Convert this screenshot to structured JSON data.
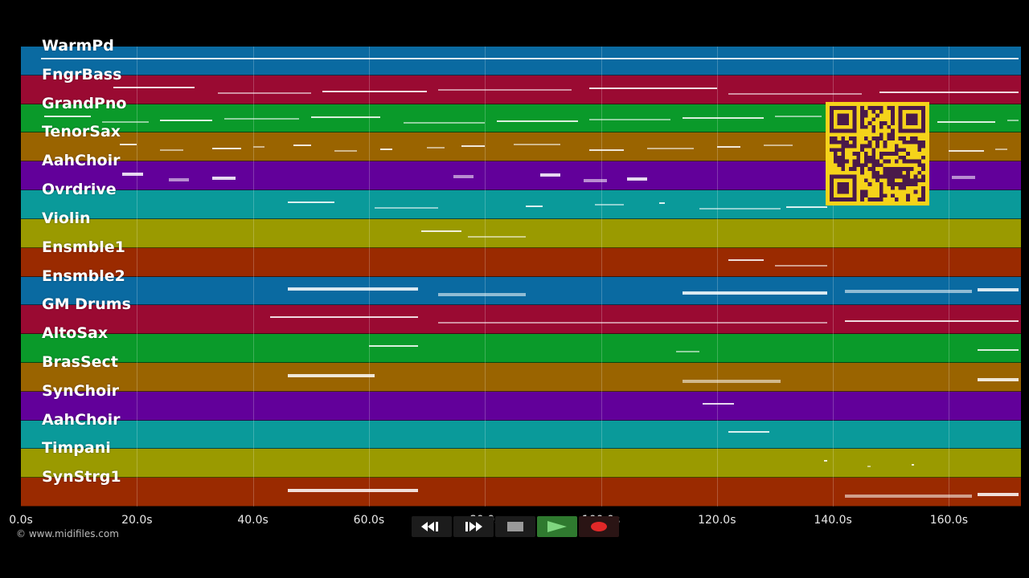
{
  "tracks": [
    {
      "name": "WarmPd",
      "color": "#0a6aa1"
    },
    {
      "name": "FngrBass",
      "color": "#9a0a32"
    },
    {
      "name": "GrandPno",
      "color": "#0a9a2a"
    },
    {
      "name": "TenorSax",
      "color": "#9a6400"
    },
    {
      "name": "AahChoir",
      "color": "#62009a"
    },
    {
      "name": "Ovrdrive",
      "color": "#0a9a9a"
    },
    {
      "name": "Violin",
      "color": "#9a9a00"
    },
    {
      "name": "Ensmble1",
      "color": "#9a2a00"
    },
    {
      "name": "Ensmble2",
      "color": "#0a6aa1"
    },
    {
      "name": "GM Drums",
      "color": "#9a0a32"
    },
    {
      "name": "AltoSax",
      "color": "#0a9a2a"
    },
    {
      "name": "BrasSect",
      "color": "#9a6400"
    },
    {
      "name": "SynChoir",
      "color": "#62009a"
    },
    {
      "name": "AahChoir",
      "color": "#0a9a9a"
    },
    {
      "name": "Timpani",
      "color": "#9a9a00"
    },
    {
      "name": "SynStrg1",
      "color": "#9a2a00"
    }
  ],
  "timeline": {
    "max_seconds": 172,
    "ticks": [
      "0.0s",
      "20.0s",
      "40.0s",
      "60.0s",
      "80.0s",
      "100.0s",
      "120.0s",
      "140.0s",
      "160.0s"
    ],
    "tick_values": [
      0,
      20,
      40,
      60,
      80,
      100,
      120,
      140,
      160
    ]
  },
  "notes": [
    {
      "track": 0,
      "segments": [
        [
          3.5,
          172
        ]
      ]
    },
    {
      "track": 1,
      "segments": [
        [
          16,
          30
        ],
        [
          34,
          50
        ],
        [
          52,
          70
        ],
        [
          72,
          95
        ],
        [
          98,
          120
        ],
        [
          122,
          145
        ],
        [
          148,
          172
        ]
      ]
    },
    {
      "track": 2,
      "segments": [
        [
          4,
          12
        ],
        [
          14,
          22
        ],
        [
          24,
          33
        ],
        [
          35,
          48
        ],
        [
          50,
          62
        ],
        [
          66,
          80
        ],
        [
          82,
          96
        ],
        [
          98,
          112
        ],
        [
          114,
          128
        ],
        [
          130,
          138
        ],
        [
          158,
          168
        ],
        [
          170,
          172
        ]
      ]
    },
    {
      "track": 3,
      "segments": [
        [
          17,
          20
        ],
        [
          24,
          28
        ],
        [
          33,
          38
        ],
        [
          40,
          42
        ],
        [
          47,
          50
        ],
        [
          54,
          58
        ],
        [
          62,
          64
        ],
        [
          70,
          73
        ],
        [
          76,
          80
        ],
        [
          85,
          93
        ],
        [
          98,
          104
        ],
        [
          108,
          116
        ],
        [
          120,
          124
        ],
        [
          128,
          133
        ],
        [
          160,
          166
        ],
        [
          168,
          170
        ]
      ]
    },
    {
      "track": 4,
      "segments": [
        [
          17.5,
          21
        ],
        [
          25.5,
          29
        ],
        [
          33,
          37
        ],
        [
          74.5,
          78
        ],
        [
          89.5,
          93
        ],
        [
          97,
          101
        ],
        [
          104.5,
          108
        ],
        [
          160.5,
          164.5
        ]
      ]
    },
    {
      "track": 5,
      "segments": [
        [
          46,
          54
        ],
        [
          61,
          72
        ],
        [
          87,
          90
        ],
        [
          99,
          104
        ],
        [
          110,
          111
        ],
        [
          117,
          131
        ],
        [
          132,
          139
        ]
      ]
    },
    {
      "track": 6,
      "segments": [
        [
          69,
          76
        ],
        [
          77,
          87
        ]
      ]
    },
    {
      "track": 7,
      "segments": [
        [
          122,
          128
        ],
        [
          130,
          139
        ]
      ]
    },
    {
      "track": 8,
      "segments": [
        [
          46,
          68.5
        ],
        [
          72,
          87
        ],
        [
          114,
          139
        ],
        [
          142,
          164
        ],
        [
          165,
          172
        ]
      ]
    },
    {
      "track": 9,
      "segments": [
        [
          43,
          68.5
        ],
        [
          72,
          139
        ],
        [
          142,
          172
        ]
      ]
    },
    {
      "track": 10,
      "segments": [
        [
          60,
          68.5
        ],
        [
          113,
          117
        ],
        [
          165,
          172
        ]
      ]
    },
    {
      "track": 11,
      "segments": [
        [
          46,
          61
        ],
        [
          114,
          131
        ],
        [
          165,
          172
        ]
      ]
    },
    {
      "track": 12,
      "segments": [
        [
          117.5,
          123
        ]
      ]
    },
    {
      "track": 13,
      "segments": [
        [
          122,
          129
        ]
      ]
    },
    {
      "track": 14,
      "segments": [
        [
          138.5,
          139
        ],
        [
          146,
          146.5
        ],
        [
          153.5,
          154
        ]
      ]
    },
    {
      "track": 15,
      "segments": [
        [
          46,
          68.5
        ],
        [
          142,
          164
        ],
        [
          165,
          172
        ]
      ]
    }
  ],
  "copyright": "© www.midifiles.com",
  "transport": {
    "rewind": "rewind-icon",
    "fast_forward": "fast-forward-icon",
    "stop": "stop-icon",
    "play": "play-icon",
    "record": "record-icon"
  },
  "colors": {
    "background": "#000000",
    "play_button": "#2f7a2f",
    "record_dot": "#e02828",
    "qr_background": "#f5d31a",
    "qr_modules": "#4a1a4a"
  }
}
